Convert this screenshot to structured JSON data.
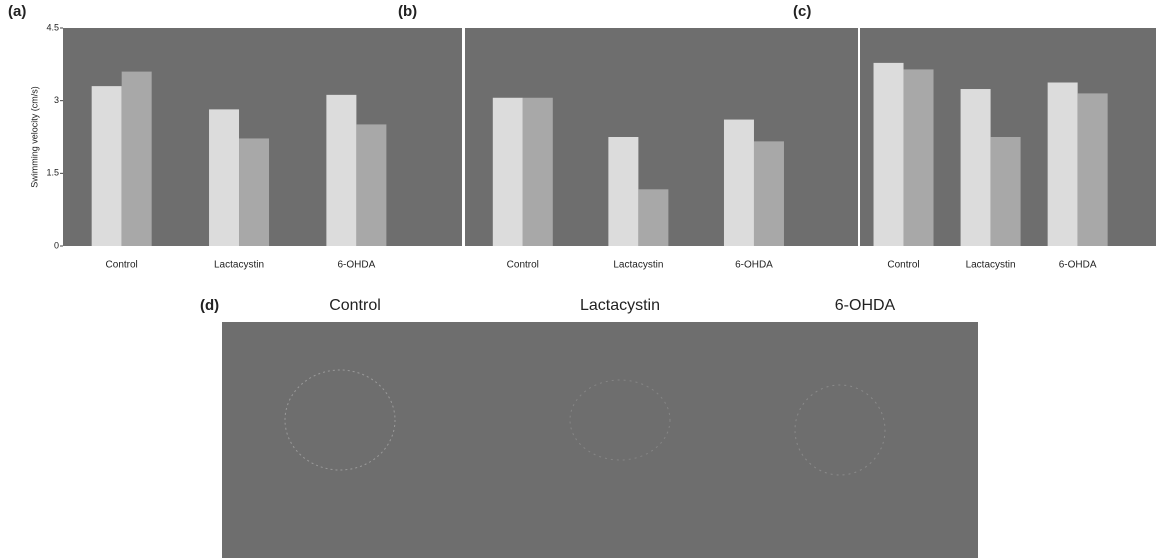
{
  "chart_data": [
    {
      "type": "bar",
      "panel_label": "(a)",
      "y_label": "Swimming velocity (cm/s)",
      "categories": [
        "Control",
        "Lactacystin",
        "6-OHDA"
      ],
      "series": [
        {
          "color": "#dcdcdc",
          "values": [
            3.3,
            2.82,
            3.12
          ]
        },
        {
          "color": "#a8a8a8",
          "values": [
            3.6,
            2.22,
            2.51
          ]
        }
      ],
      "ylim": [
        0,
        4.5
      ],
      "yticks": [
        0,
        1.5,
        3,
        4.5
      ]
    },
    {
      "type": "bar",
      "panel_label": "(b)",
      "categories": [
        "Control",
        "Lactacystin",
        "6-OHDA"
      ],
      "series": [
        {
          "color": "#dcdcdc",
          "values": [
            68,
            50,
            58
          ]
        },
        {
          "color": "#a8a8a8",
          "values": [
            68,
            26,
            48
          ]
        }
      ],
      "ylim": [
        0,
        100
      ]
    },
    {
      "type": "bar",
      "panel_label": "(c)",
      "categories": [
        "Control",
        "Lactacystin",
        "6-OHDA"
      ],
      "series": [
        {
          "color": "#dcdcdc",
          "values": [
            84,
            72,
            75
          ]
        },
        {
          "color": "#a8a8a8",
          "values": [
            81,
            50,
            70
          ]
        }
      ],
      "ylim": [
        0,
        100
      ]
    }
  ],
  "panel_d": {
    "label": "(d)",
    "columns": [
      "Control",
      "Lactacystin",
      "6-OHDA"
    ]
  }
}
